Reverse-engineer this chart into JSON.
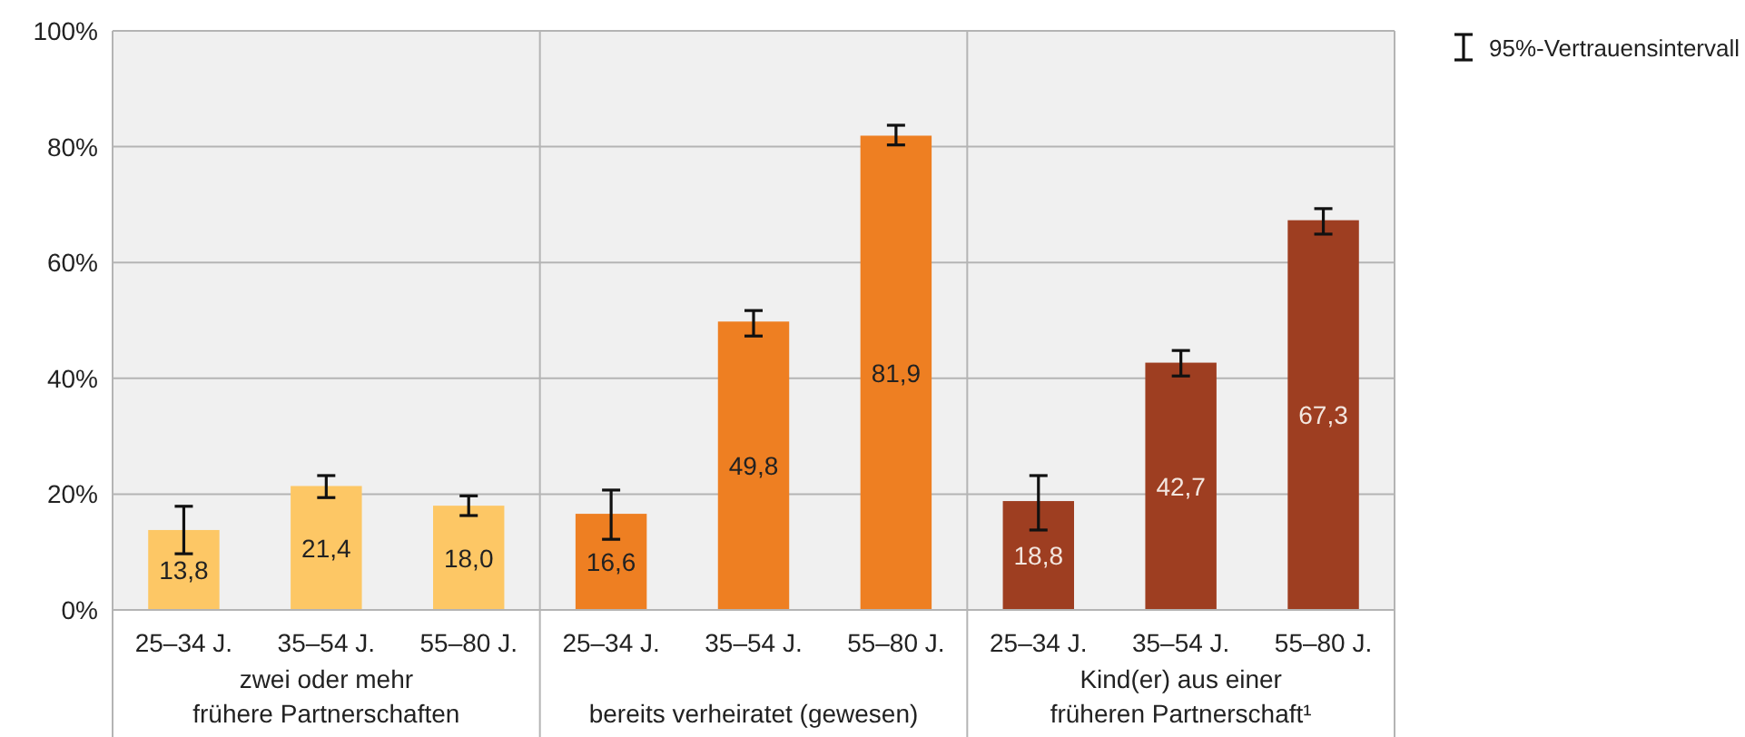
{
  "chart_data": {
    "type": "bar",
    "categories": [
      "25–34 J.",
      "35–54 J.",
      "55–80 J.",
      "25–34 J.",
      "35–54 J.",
      "55–80 J.",
      "25–34 J.",
      "35–54 J.",
      "55–80 J."
    ],
    "values": [
      13.8,
      21.4,
      18.0,
      16.6,
      49.8,
      81.9,
      18.8,
      42.7,
      67.3
    ],
    "colors": [
      "#fdc765",
      "#fdc765",
      "#fdc765",
      "#ee7f22",
      "#ee7f22",
      "#ee7f22",
      "#9e3e21",
      "#9e3e21",
      "#9e3e21"
    ],
    "errors": [
      [
        9.7,
        17.9
      ],
      [
        19.4,
        23.2
      ],
      [
        16.3,
        19.7
      ],
      [
        12.2,
        20.7
      ],
      [
        47.3,
        51.7
      ],
      [
        80.3,
        83.7
      ],
      [
        13.8,
        23.2
      ],
      [
        40.4,
        44.8
      ],
      [
        64.9,
        69.3
      ]
    ],
    "value_labels": [
      "13,8",
      "21,4",
      "18,0",
      "16,6",
      "49,8",
      "81,9",
      "18,8",
      "42,7",
      "67,3"
    ],
    "ylim": [
      0,
      100
    ],
    "yticks": [
      {
        "value": 0,
        "label": "0%"
      },
      {
        "value": 20,
        "label": "20%"
      },
      {
        "value": 40,
        "label": "40%"
      },
      {
        "value": 60,
        "label": "60%"
      },
      {
        "value": 80,
        "label": "80%"
      },
      {
        "value": 100,
        "label": "100%"
      }
    ],
    "grid": "y",
    "legend_title": "95%-Vertrauensintervall",
    "annotations": [
      "zwei oder mehr\nfrühere Partnerschaften",
      "bereits verheiratet (gewesen)",
      "Kind(er) aus einer\nfrüheren Partnerschaft¹"
    ]
  }
}
